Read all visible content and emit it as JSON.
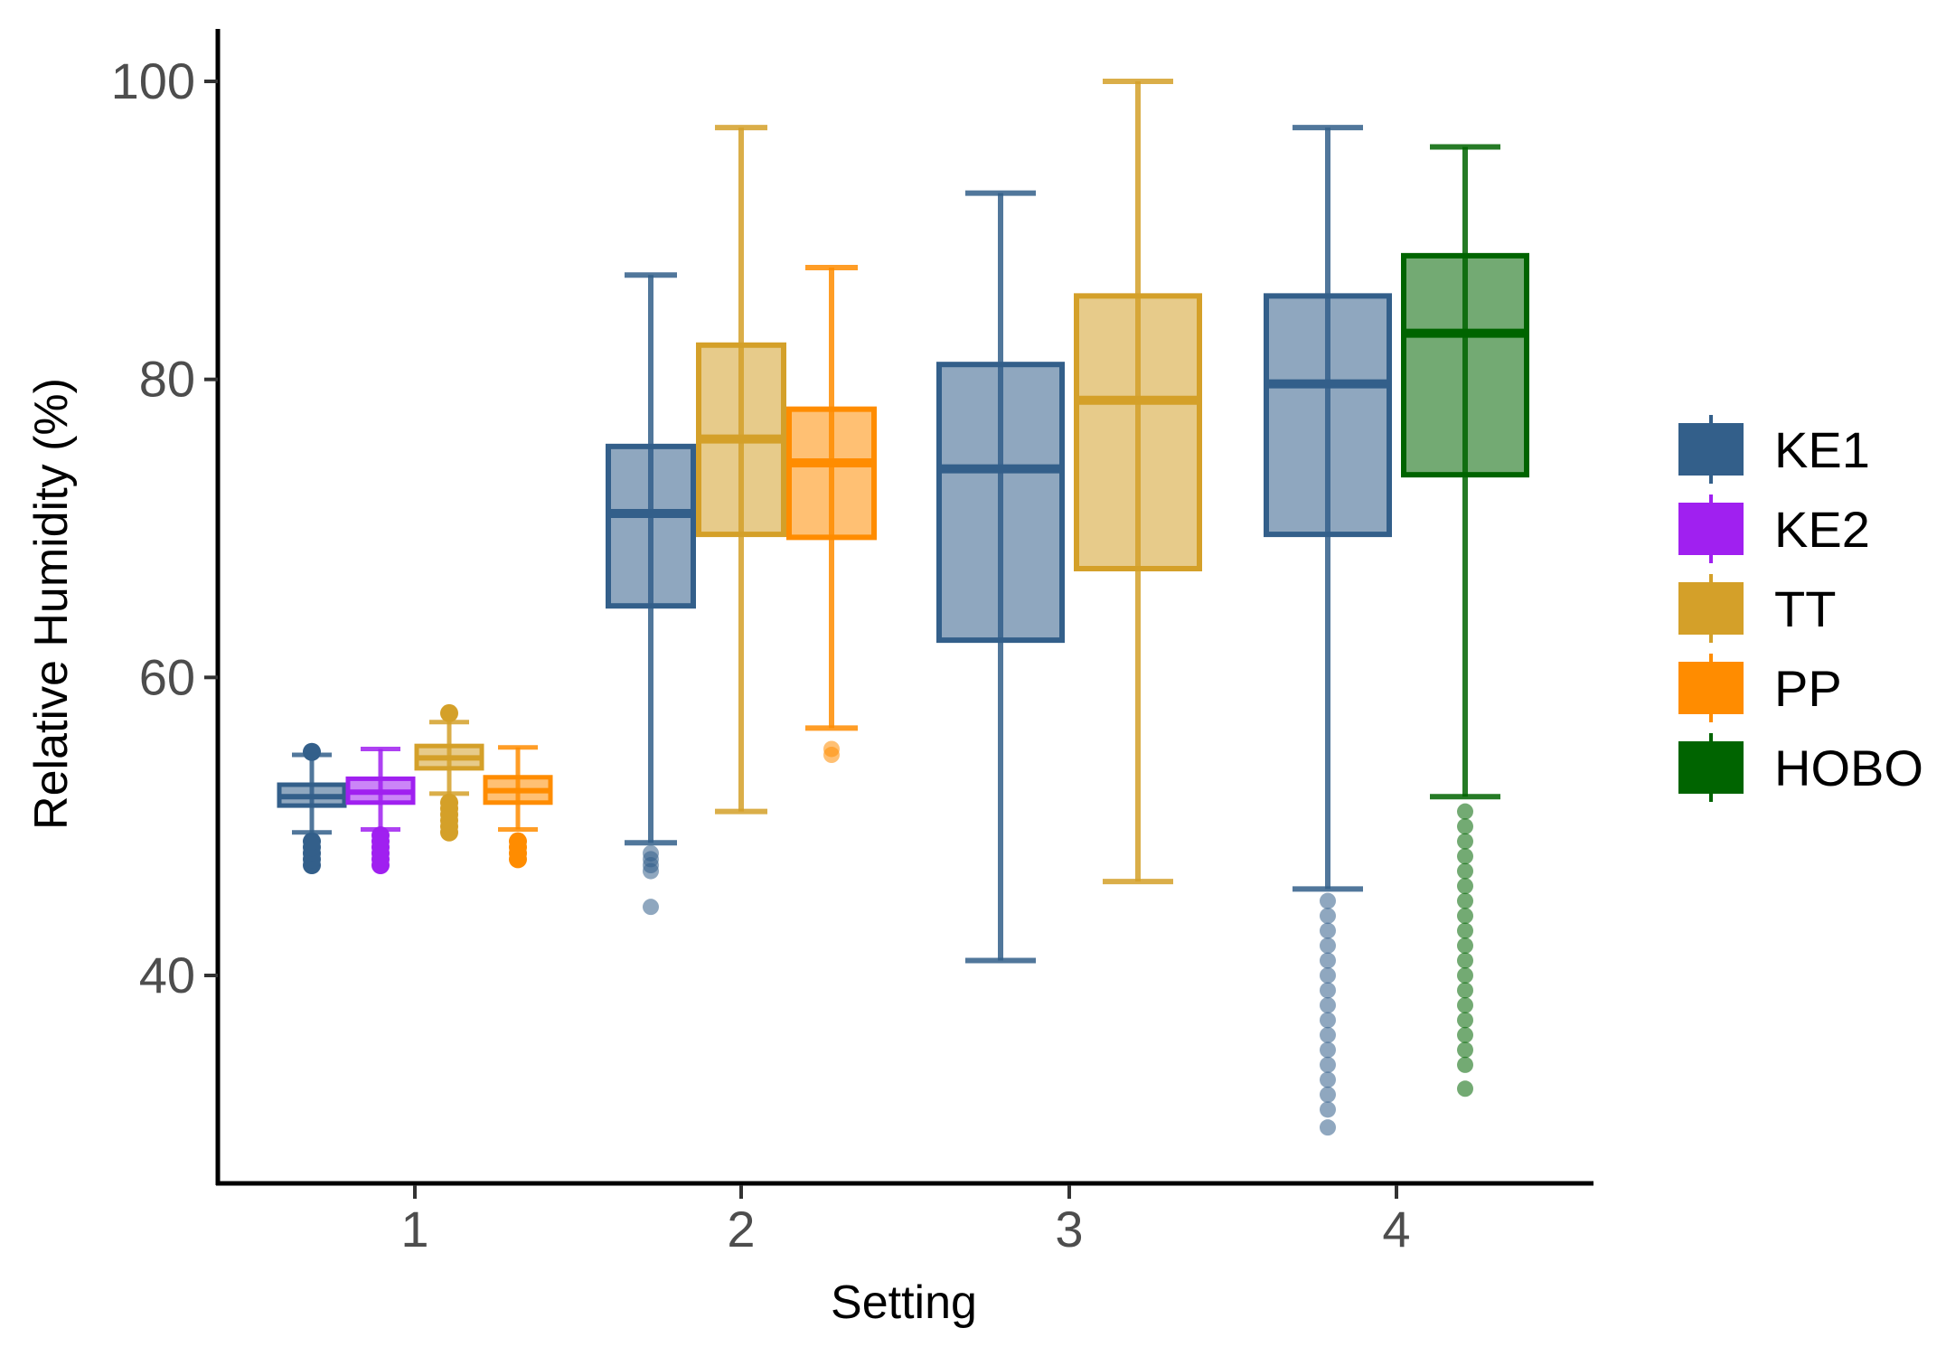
{
  "chart_data": {
    "type": "boxplot",
    "title": "",
    "xlabel": "Setting",
    "ylabel": "Relative Humidity (%)",
    "categories": [
      "1",
      "2",
      "3",
      "4"
    ],
    "ylim": [
      27,
      103
    ],
    "yticks": [
      40,
      60,
      80,
      100
    ],
    "grid": false,
    "legend_position": "right",
    "series": [
      {
        "name": "KE1",
        "color": "#335f8a",
        "boxes": [
          {
            "setting": "1",
            "whisker_low": 49.6,
            "q1": 51.4,
            "median": 52.0,
            "q3": 52.8,
            "whisker_high": 54.8,
            "outliers": [
              47.4,
              47.8,
              48.2,
              48.6,
              49.0,
              55.0
            ]
          },
          {
            "setting": "2",
            "whisker_low": 48.9,
            "q1": 64.8,
            "median": 71.0,
            "q3": 75.5,
            "whisker_high": 87.0,
            "outliers": [
              44.6,
              47.0,
              47.4,
              47.8,
              48.2
            ]
          },
          {
            "setting": "3",
            "whisker_low": 41.0,
            "q1": 62.5,
            "median": 74.0,
            "q3": 81.0,
            "whisker_high": 92.5,
            "outliers": []
          },
          {
            "setting": "4",
            "whisker_low": 45.8,
            "q1": 69.6,
            "median": 79.7,
            "q3": 85.6,
            "whisker_high": 96.9,
            "outliers": [
              29.8,
              31.0,
              32.0,
              33.0,
              34.0,
              35.0,
              36.0,
              37.0,
              38.0,
              39.0,
              40.0,
              41.0,
              42.0,
              43.0,
              44.0,
              45.0
            ]
          }
        ]
      },
      {
        "name": "KE2",
        "color": "#a020f0",
        "boxes": [
          {
            "setting": "1",
            "whisker_low": 49.8,
            "q1": 51.6,
            "median": 52.3,
            "q3": 53.2,
            "whisker_high": 55.2,
            "outliers": [
              47.4,
              47.8,
              48.2,
              48.6,
              49.0,
              49.4
            ]
          }
        ]
      },
      {
        "name": "TT",
        "color": "#d4a029",
        "boxes": [
          {
            "setting": "1",
            "whisker_low": 52.2,
            "q1": 53.9,
            "median": 54.6,
            "q3": 55.4,
            "whisker_high": 57.0,
            "outliers": [
              49.6,
              50.0,
              50.4,
              50.8,
              51.2,
              51.6,
              57.6
            ]
          },
          {
            "setting": "2",
            "whisker_low": 51.0,
            "q1": 69.6,
            "median": 76.0,
            "q3": 82.3,
            "whisker_high": 96.9,
            "outliers": []
          },
          {
            "setting": "3",
            "whisker_low": 46.3,
            "q1": 67.3,
            "median": 78.6,
            "q3": 85.6,
            "whisker_high": 100.0,
            "outliers": []
          }
        ]
      },
      {
        "name": "PP",
        "color": "#ff8c00",
        "boxes": [
          {
            "setting": "1",
            "whisker_low": 49.8,
            "q1": 51.6,
            "median": 52.4,
            "q3": 53.3,
            "whisker_high": 55.3,
            "outliers": [
              47.8,
              48.2,
              48.6,
              49.0
            ]
          },
          {
            "setting": "2",
            "whisker_low": 56.6,
            "q1": 69.4,
            "median": 74.4,
            "q3": 78.0,
            "whisker_high": 87.5,
            "outliers": [
              54.8,
              55.2
            ]
          }
        ]
      },
      {
        "name": "HOBO",
        "color": "#006400",
        "boxes": [
          {
            "setting": "4",
            "whisker_low": 52.0,
            "q1": 73.6,
            "median": 83.1,
            "q3": 88.3,
            "whisker_high": 95.6,
            "outliers": [
              32.4,
              34.0,
              35.0,
              36.0,
              37.0,
              38.0,
              39.0,
              40.0,
              41.0,
              42.0,
              43.0,
              44.0,
              45.0,
              46.0,
              47.0,
              48.0,
              49.0,
              50.0,
              51.0
            ]
          }
        ]
      }
    ]
  }
}
